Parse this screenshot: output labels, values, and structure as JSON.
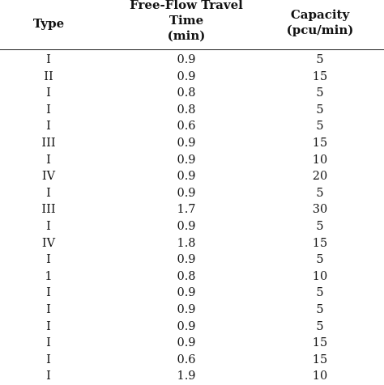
{
  "table": {
    "headers": {
      "type": "Type",
      "time": [
        "Free-Flow Travel",
        "Time",
        "(min)"
      ],
      "capacity": [
        "Capacity",
        "(pcu/min)"
      ]
    },
    "rows": [
      {
        "type": "I",
        "time": "0.9",
        "capacity": "5"
      },
      {
        "type": "II",
        "time": "0.9",
        "capacity": "15"
      },
      {
        "type": "I",
        "time": "0.8",
        "capacity": "5"
      },
      {
        "type": "I",
        "time": "0.8",
        "capacity": "5"
      },
      {
        "type": "I",
        "time": "0.6",
        "capacity": "5"
      },
      {
        "type": "III",
        "time": "0.9",
        "capacity": "15"
      },
      {
        "type": "I",
        "time": "0.9",
        "capacity": "10"
      },
      {
        "type": "IV",
        "time": "0.9",
        "capacity": "20"
      },
      {
        "type": "I",
        "time": "0.9",
        "capacity": "5"
      },
      {
        "type": "III",
        "time": "1.7",
        "capacity": "30"
      },
      {
        "type": "I",
        "time": "0.9",
        "capacity": "5"
      },
      {
        "type": "IV",
        "time": "1.8",
        "capacity": "15"
      },
      {
        "type": "I",
        "time": "0.9",
        "capacity": "5"
      },
      {
        "type": "1",
        "time": "0.8",
        "capacity": "10"
      },
      {
        "type": "I",
        "time": "0.9",
        "capacity": "5"
      },
      {
        "type": "I",
        "time": "0.9",
        "capacity": "5"
      },
      {
        "type": "I",
        "time": "0.9",
        "capacity": "5"
      },
      {
        "type": "I",
        "time": "0.9",
        "capacity": "15"
      },
      {
        "type": "I",
        "time": "0.6",
        "capacity": "15"
      },
      {
        "type": "I",
        "time": "1.9",
        "capacity": "10"
      }
    ]
  }
}
